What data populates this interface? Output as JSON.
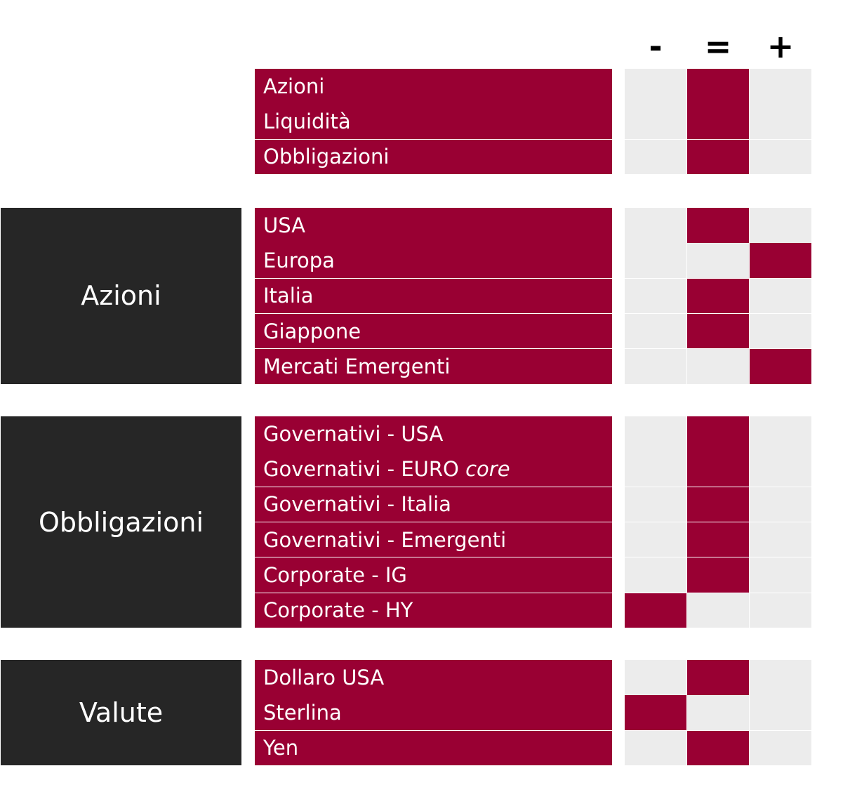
{
  "columns": [
    "-",
    "=",
    "+"
  ],
  "sections": [
    {
      "label": "",
      "rows": [
        {
          "label": "Azioni",
          "rating": "="
        },
        {
          "label": "Liquidità",
          "rating": "="
        },
        {
          "label": "Obbligazioni",
          "rating": "="
        }
      ]
    },
    {
      "label": "Azioni",
      "rows": [
        {
          "label": "USA",
          "rating": "="
        },
        {
          "label": "Europa",
          "rating": "+"
        },
        {
          "label": "Italia",
          "rating": "="
        },
        {
          "label": "Giappone",
          "rating": "="
        },
        {
          "label": "Mercati Emergenti",
          "rating": "+"
        }
      ]
    },
    {
      "label": "Obbligazioni",
      "rows": [
        {
          "label": "Governativi - USA",
          "rating": "="
        },
        {
          "label": "Governativi - EURO",
          "suffix": "core",
          "rating": "="
        },
        {
          "label": "Governativi - Italia",
          "rating": "="
        },
        {
          "label": "Governativi - Emergenti",
          "rating": "="
        },
        {
          "label": "Corporate - IG",
          "rating": "="
        },
        {
          "label": "Corporate - HY",
          "rating": "-"
        }
      ]
    },
    {
      "label": "Valute",
      "rows": [
        {
          "label": "Dollaro USA",
          "rating": "="
        },
        {
          "label": "Sterlina",
          "rating": "-"
        },
        {
          "label": "Yen",
          "rating": "="
        }
      ]
    }
  ]
}
